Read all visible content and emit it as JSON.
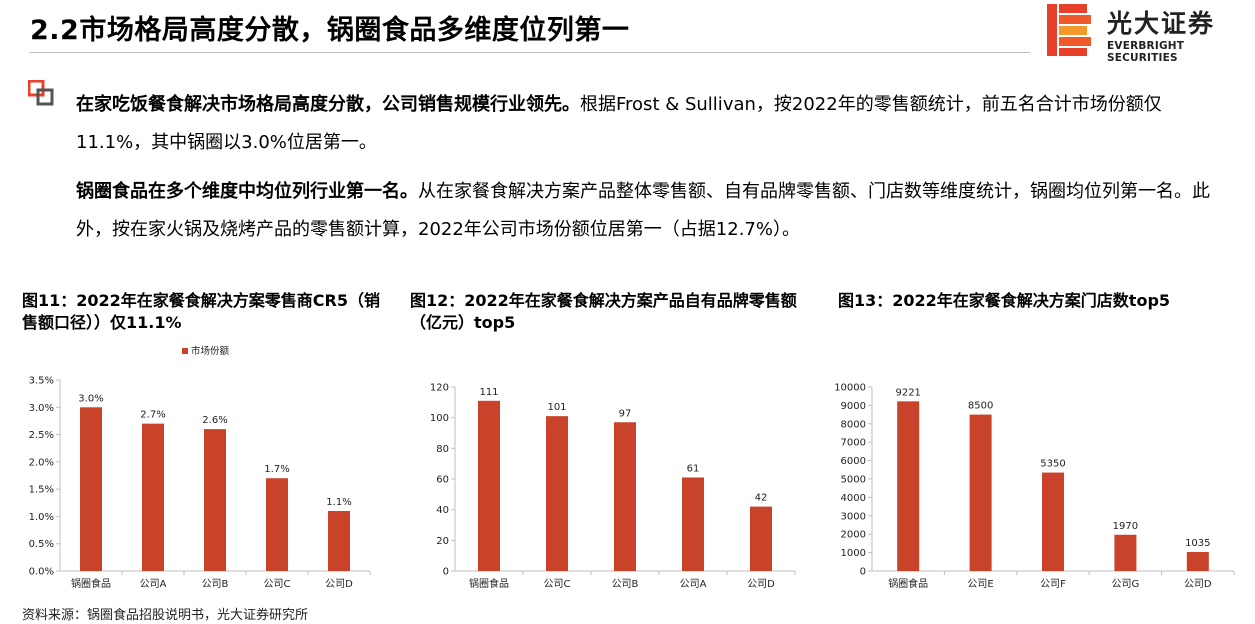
{
  "header": {
    "title": "2.2市场格局高度分散，锅圈食品多维度位列第一",
    "logo_cn": "光大证券",
    "logo_en": "EVERBRIGHT SECURITIES"
  },
  "paragraphs": [
    {
      "bold": "在家吃饭餐食解决市场格局高度分散，公司销售规模行业领先。",
      "text": "根据Frost & Sullivan，按2022年的零售额统计，前五名合计市场份额仅11.1%，其中锅圈以3.0%位居第一。"
    },
    {
      "bold": "锅圈食品在多个维度中均位列行业第一名。",
      "text": "从在家餐食解决方案产品整体零售额、自有品牌零售额、门店数等维度统计，锅圈均位列第一名。此外，按在家火锅及烧烤产品的零售额计算，2022年公司市场份额位居第一（占据12.7%）。"
    }
  ],
  "captions": {
    "fig11": "图11：2022年在家餐食解决方案零售商CR5（销售额口径））仅11.1%",
    "fig12": "图12：2022年在家餐食解决方案产品自有品牌零售额（亿元）top5",
    "fig13": "图13：2022年在家餐食解决方案门店数top5"
  },
  "source": "资料来源：锅圈食品招股说明书，光大证券研究所",
  "colors": {
    "bar": "#c8432a",
    "logo_red": "#e8402a",
    "logo_orange": "#f39a2b"
  },
  "chart_data": [
    {
      "type": "bar",
      "categories": [
        "锅圈食品",
        "公司A",
        "公司B",
        "公司C",
        "公司D"
      ],
      "values": [
        3.0,
        2.7,
        2.6,
        1.7,
        1.1
      ],
      "data_labels": [
        "3.0%",
        "2.7%",
        "2.6%",
        "1.7%",
        "1.1%"
      ],
      "series_name": "市场份额",
      "ylim": [
        0,
        3.5
      ],
      "yticks": [
        0,
        0.5,
        1.0,
        1.5,
        2.0,
        2.5,
        3.0,
        3.5
      ],
      "ytick_labels": [
        "0.0%",
        "0.5%",
        "1.0%",
        "1.5%",
        "2.0%",
        "2.5%",
        "3.0%",
        "3.5%"
      ],
      "legend": "top"
    },
    {
      "type": "bar",
      "categories": [
        "锅圈食品",
        "公司C",
        "公司B",
        "公司A",
        "公司D"
      ],
      "values": [
        111,
        101,
        97,
        61,
        42
      ],
      "data_labels": [
        "111",
        "101",
        "97",
        "61",
        "42"
      ],
      "ylim": [
        0,
        120
      ],
      "yticks": [
        0,
        20,
        40,
        60,
        80,
        100,
        120
      ],
      "ytick_labels": [
        "0",
        "20",
        "40",
        "60",
        "80",
        "100",
        "120"
      ]
    },
    {
      "type": "bar",
      "categories": [
        "锅圈食品",
        "公司E",
        "公司F",
        "公司G",
        "公司D"
      ],
      "values": [
        9221,
        8500,
        5350,
        1970,
        1035
      ],
      "data_labels": [
        "9221",
        "8500",
        "5350",
        "1970",
        "1035"
      ],
      "ylim": [
        0,
        10000
      ],
      "yticks": [
        0,
        1000,
        2000,
        3000,
        4000,
        5000,
        6000,
        7000,
        8000,
        9000,
        10000
      ],
      "ytick_labels": [
        "0",
        "1000",
        "2000",
        "3000",
        "4000",
        "5000",
        "6000",
        "7000",
        "8000",
        "9000",
        "10000"
      ]
    }
  ]
}
